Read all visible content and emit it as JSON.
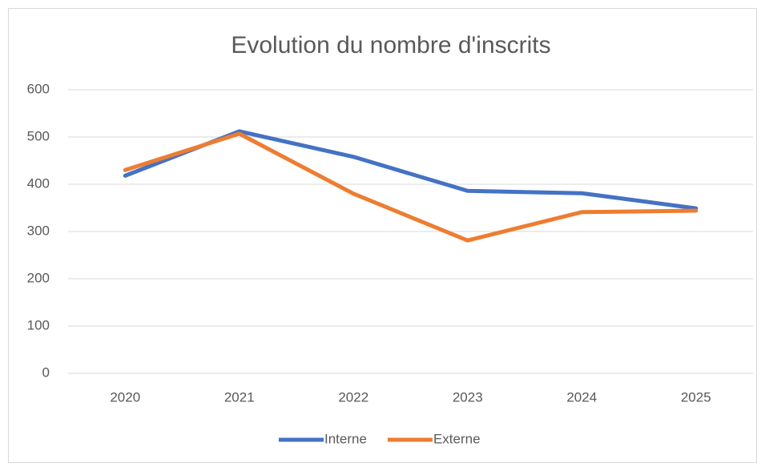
{
  "chart_data": {
    "type": "line",
    "title": "Evolution du nombre d'inscrits",
    "categories": [
      "2020",
      "2021",
      "2022",
      "2023",
      "2024",
      "2025"
    ],
    "series": [
      {
        "name": "Interne",
        "color": "#4472c4",
        "values": [
          418,
          512,
          458,
          386,
          381,
          349
        ]
      },
      {
        "name": "Externe",
        "color": "#ed7d31",
        "values": [
          430,
          507,
          380,
          281,
          341,
          344
        ]
      }
    ],
    "ylim": [
      0,
      600
    ],
    "yticks": [
      0,
      100,
      200,
      300,
      400,
      500,
      600
    ],
    "grid": true,
    "legend": "bottom"
  }
}
